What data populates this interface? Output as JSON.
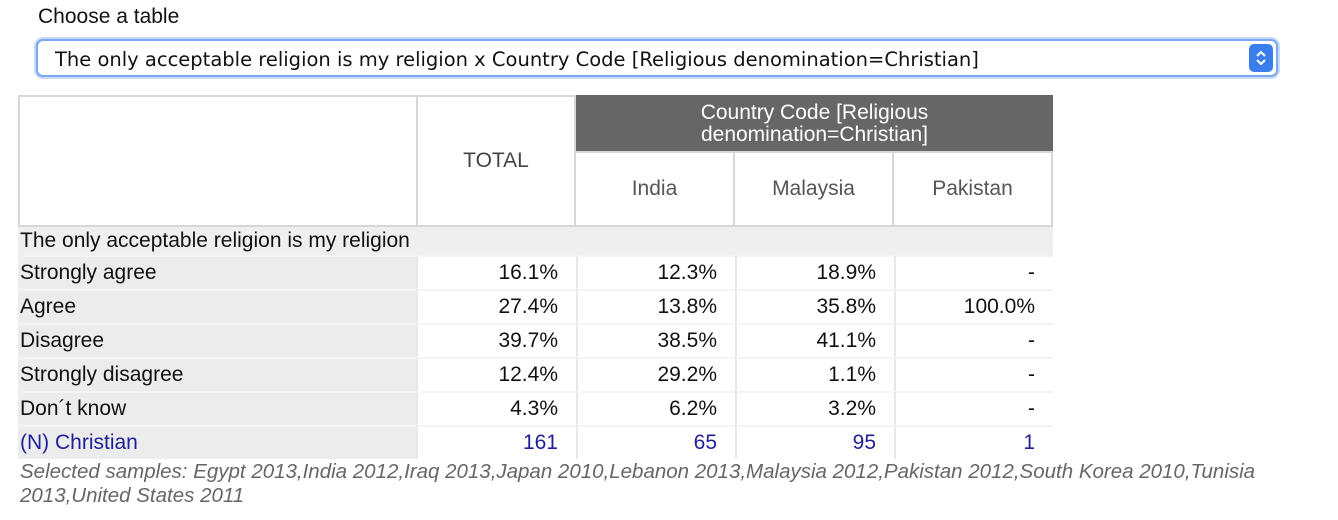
{
  "chooser": {
    "label": "Choose a table",
    "selected": "The only acceptable religion is my religion x Country Code [Religious denomination=Christian]"
  },
  "table": {
    "total_header": "TOTAL",
    "group_header": "Country Code [Religious denomination=Christian]",
    "columns": [
      "India",
      "Malaysia",
      "Pakistan"
    ],
    "variable_label": "The only acceptable religion is my religion",
    "rows": [
      {
        "label": "Strongly agree",
        "values": [
          "16.1%",
          "12.3%",
          "18.9%",
          "-"
        ]
      },
      {
        "label": "Agree",
        "values": [
          "27.4%",
          "13.8%",
          "35.8%",
          "100.0%"
        ]
      },
      {
        "label": "Disagree",
        "values": [
          "39.7%",
          "38.5%",
          "41.1%",
          "-"
        ]
      },
      {
        "label": "Strongly disagree",
        "values": [
          "12.4%",
          "29.2%",
          "1.1%",
          "-"
        ]
      },
      {
        "label": "Don´t know",
        "values": [
          "4.3%",
          "6.2%",
          "3.2%",
          "-"
        ]
      }
    ],
    "n_row": {
      "label": "(N) Christian",
      "values": [
        "161",
        "65",
        "95",
        "1"
      ]
    }
  },
  "footnote": "Selected samples: Egypt 2013,India 2012,Iraq 2013,Japan 2010,Lebanon 2013,Malaysia 2012,Pakistan 2012,South Korea 2010,Tunisia 2013,United States 2011",
  "colors": {
    "group_header_bg": "#666666",
    "n_row_text": "#1f1f99",
    "select_accent": "#3b7ded"
  },
  "icons": {
    "select_arrows": "chevron-up-down-icon"
  }
}
